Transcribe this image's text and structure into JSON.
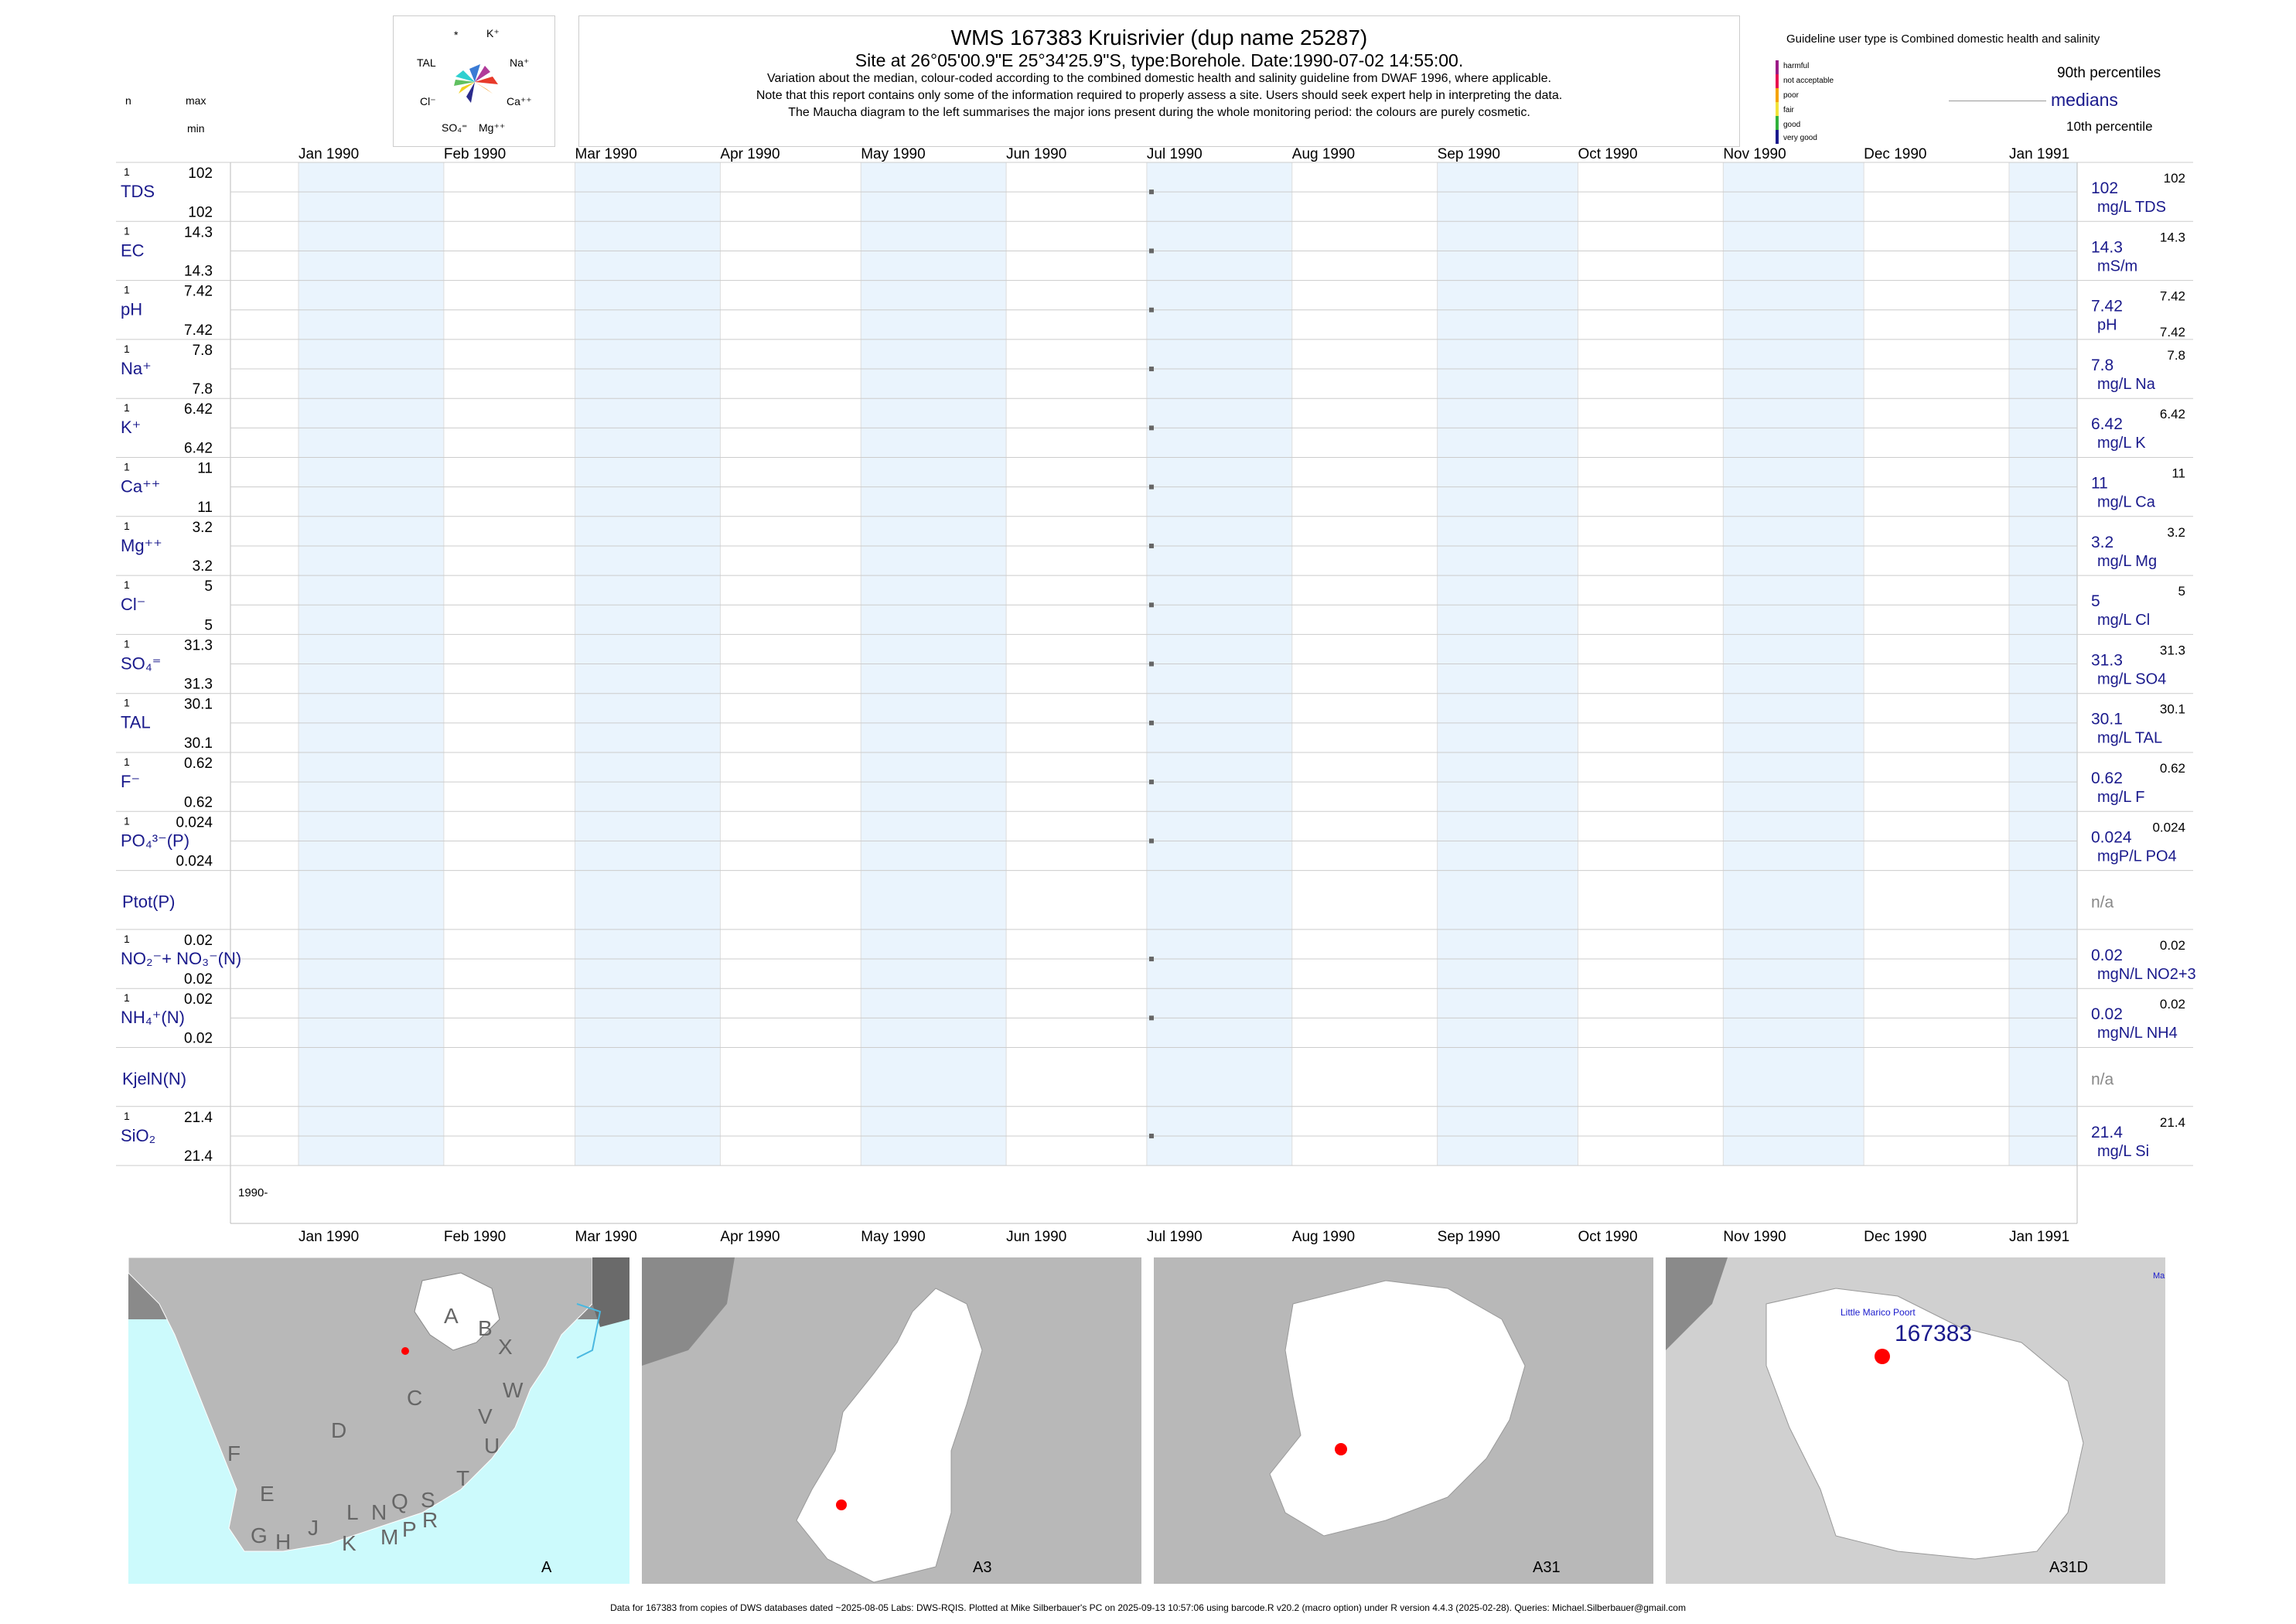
{
  "header": {
    "title": "WMS 167383  Kruisrivier (dup name 25287)",
    "site": "Site at 26°05'00.9\"E 25°34'25.9\"S, type:Borehole. Date:1990-07-02 14:55:00.",
    "line1": "Variation about the median,  colour-coded according to the combined domestic health and salinity guideline from DWAF 1996, where applicable.",
    "line2": "Note that this report contains only some of the information required to properly assess a site. Users should seek expert help in interpreting the data.",
    "line3": "The Maucha diagram to the left summarises the major ions present during the whole monitoring period: the colours are purely cosmetic."
  },
  "maucha": {
    "labels": [
      "*",
      "K⁺",
      "TAL",
      "Na⁺",
      "Cl⁻",
      "Ca⁺⁺",
      "SO₄⁼",
      "Mg⁺⁺"
    ]
  },
  "left_header": {
    "n": "n",
    "max": "max",
    "min": "min"
  },
  "guideline": {
    "title": "Guideline user type is Combined domestic health and salinity",
    "levels": [
      {
        "label": "harmful",
        "color": "#9b1c87"
      },
      {
        "label": "not acceptable",
        "color": "#e8124f"
      },
      {
        "label": "poor",
        "color": "#f5a300"
      },
      {
        "label": "fair",
        "color": "#f1e23a"
      },
      {
        "label": "good",
        "color": "#31b13b"
      },
      {
        "label": "very good",
        "color": "#1a1a8c"
      }
    ],
    "p90": "90th percentiles",
    "medians": "medians",
    "p10": "10th percentile"
  },
  "chart_data": {
    "type": "line",
    "x_months": [
      "Jan 1990",
      "Feb 1990",
      "Mar 1990",
      "Apr 1990",
      "May 1990",
      "Jun 1990",
      "Jul 1990",
      "Aug 1990",
      "Sep 1990",
      "Oct 1990",
      "Nov 1990",
      "Dec 1990",
      "Jan 1991"
    ],
    "x_range": [
      "1990-01-01",
      "1991-01-01"
    ],
    "sample_date": "1990-07-02",
    "year_label": "1990-",
    "series": [
      {
        "name": "TDS",
        "n": "1",
        "max": "102",
        "min": "102",
        "value": "102",
        "unit": "mg/L TDS",
        "p90": "102",
        "p10": ""
      },
      {
        "name": "EC",
        "n": "1",
        "max": "14.3",
        "min": "14.3",
        "value": "14.3",
        "unit": "mS/m",
        "p90": "14.3",
        "p10": ""
      },
      {
        "name": "pH",
        "n": "1",
        "max": "7.42",
        "min": "7.42",
        "value": "7.42",
        "unit": "pH",
        "p90": "7.42",
        "p10": "7.42"
      },
      {
        "name": "Na⁺",
        "n": "1",
        "max": "7.8",
        "min": "7.8",
        "value": "7.8",
        "unit": "mg/L Na",
        "p90": "7.8",
        "p10": ""
      },
      {
        "name": "K⁺",
        "n": "1",
        "max": "6.42",
        "min": "6.42",
        "value": "6.42",
        "unit": "mg/L K",
        "p90": "6.42",
        "p10": ""
      },
      {
        "name": "Ca⁺⁺",
        "n": "1",
        "max": "11",
        "min": "11",
        "value": "11",
        "unit": "mg/L Ca",
        "p90": "11",
        "p10": ""
      },
      {
        "name": "Mg⁺⁺",
        "n": "1",
        "max": "3.2",
        "min": "3.2",
        "value": "3.2",
        "unit": "mg/L Mg",
        "p90": "3.2",
        "p10": ""
      },
      {
        "name": "Cl⁻",
        "n": "1",
        "max": "5",
        "min": "5",
        "value": "5",
        "unit": "mg/L Cl",
        "p90": "5",
        "p10": ""
      },
      {
        "name": "SO₄⁼",
        "n": "1",
        "max": "31.3",
        "min": "31.3",
        "value": "31.3",
        "unit": "mg/L SO4",
        "p90": "31.3",
        "p10": ""
      },
      {
        "name": "TAL",
        "n": "1",
        "max": "30.1",
        "min": "30.1",
        "value": "30.1",
        "unit": "mg/L TAL",
        "p90": "30.1",
        "p10": ""
      },
      {
        "name": "F⁻",
        "n": "1",
        "max": "0.62",
        "min": "0.62",
        "value": "0.62",
        "unit": "mg/L F",
        "p90": "0.62",
        "p10": ""
      },
      {
        "name": "PO₄³⁻(P)",
        "n": "1",
        "max": "0.024",
        "min": "0.024",
        "value": "0.024",
        "unit": "mgP/L PO4",
        "p90": "0.024",
        "p10": ""
      },
      {
        "name": "Ptot(P)",
        "n": "",
        "max": "",
        "min": "",
        "value": "n/a",
        "unit": "",
        "p90": "",
        "p10": ""
      },
      {
        "name": "NO₂⁻+ NO₃⁻(N)",
        "n": "1",
        "max": "0.02",
        "min": "0.02",
        "value": "0.02",
        "unit": "mgN/L NO2+3",
        "p90": "0.02",
        "p10": ""
      },
      {
        "name": "NH₄⁺(N)",
        "n": "1",
        "max": "0.02",
        "min": "0.02",
        "value": "0.02",
        "unit": "mgN/L NH4",
        "p90": "0.02",
        "p10": ""
      },
      {
        "name": "KjelN(N)",
        "n": "",
        "max": "",
        "min": "",
        "value": "n/a",
        "unit": "",
        "p90": "",
        "p10": ""
      },
      {
        "name": "SiO₂",
        "n": "1",
        "max": "21.4",
        "min": "21.4",
        "value": "21.4",
        "unit": "mg/L Si",
        "p90": "21.4",
        "p10": ""
      }
    ]
  },
  "maps": [
    {
      "label": "A",
      "letters": [
        "A",
        "B",
        "X",
        "W",
        "C",
        "V",
        "U",
        "D",
        "T",
        "F",
        "E",
        "S",
        "L",
        "N",
        "Q",
        "R",
        "G",
        "H",
        "J",
        "K",
        "M",
        "P"
      ]
    },
    {
      "label": "A3"
    },
    {
      "label": "A31"
    },
    {
      "label": "A31D",
      "site_id": "167383",
      "place": "Little Marico Poort",
      "edge": "Ma"
    }
  ],
  "footer": "Data for 167383 from copies of DWS databases dated ~2025-08-05 Labs: DWS-RQIS. Plotted at Mike Silberbauer's PC on 2025-09-13 10:57:06 using barcode.R v20.2 (macro option) under R version 4.4.3 (2025-02-28). Queries: Michael.Silberbauer@gmail.com"
}
